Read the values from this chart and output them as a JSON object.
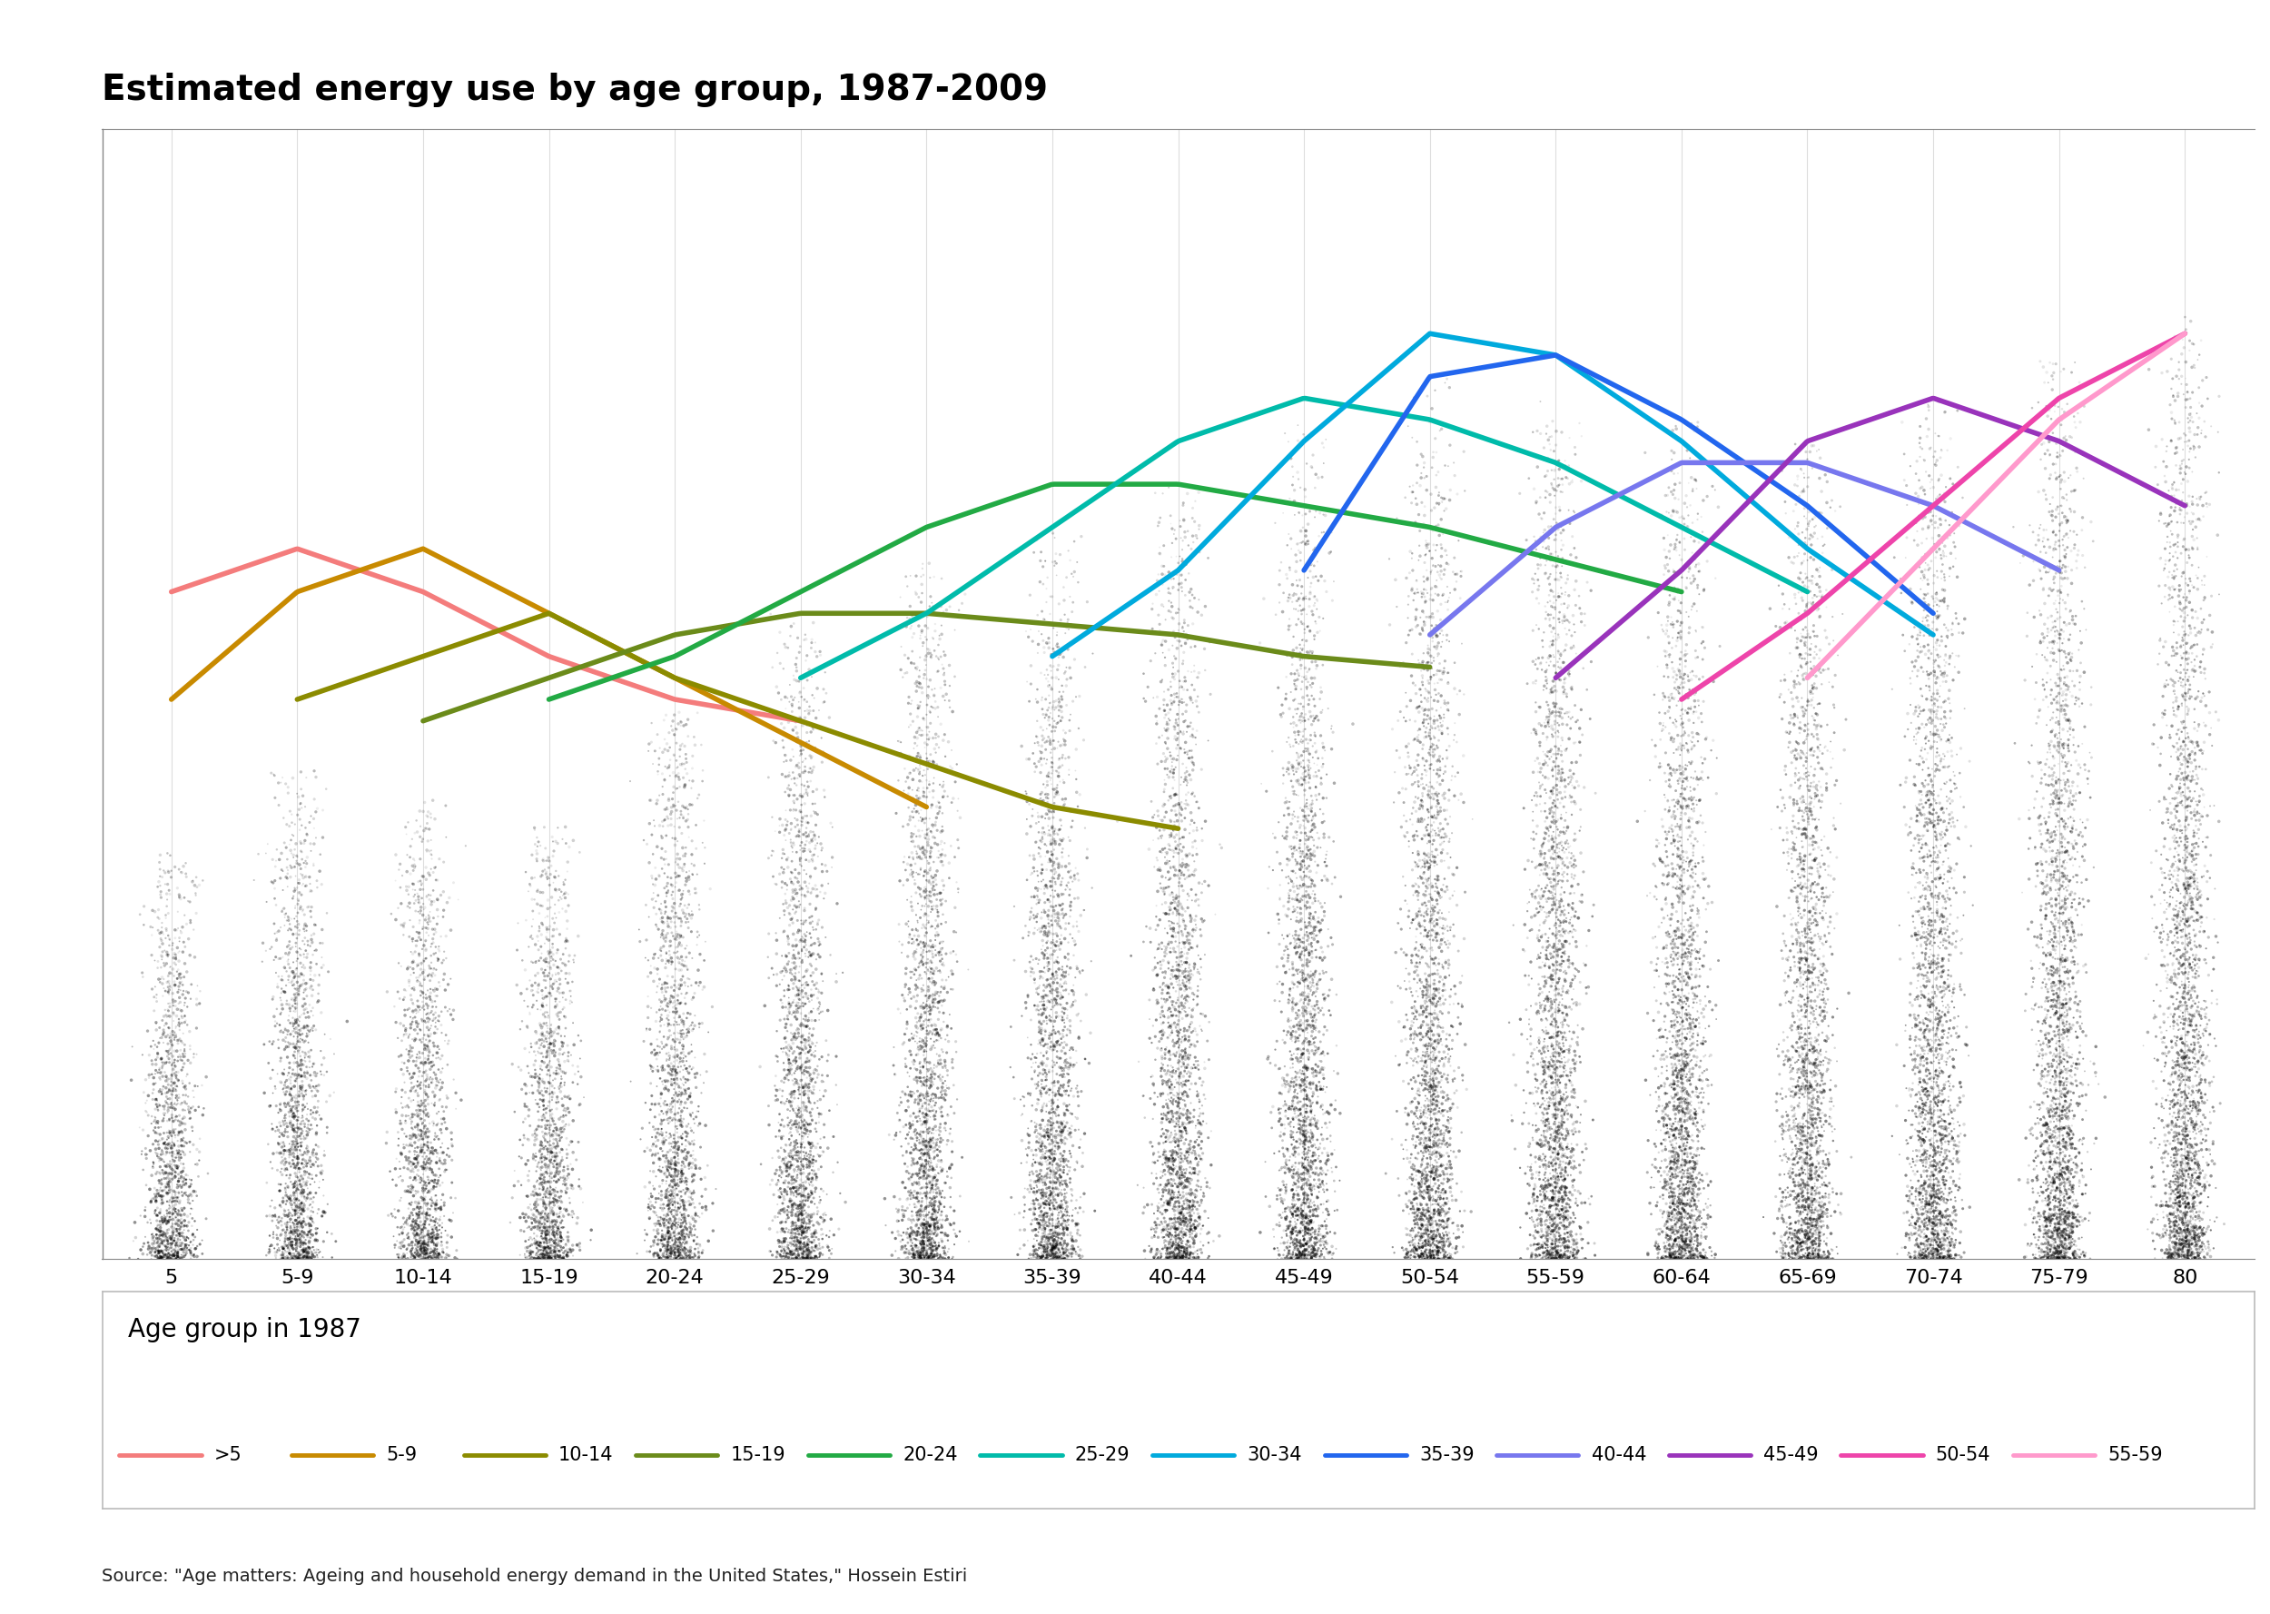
{
  "title": "Estimated energy use by age group, 1987-2009",
  "source_text": "Source: \"Age matters: Ageing and household energy demand in the United States,\" Hossein Estiri",
  "x_labels": [
    "5",
    "5-9",
    "10-14",
    "15-19",
    "20-24",
    "25-29",
    "30-34",
    "35-39",
    "40-44",
    "45-49",
    "50-54",
    "55-59",
    "60-64",
    "65-69",
    "70-74",
    "75-79",
    "80"
  ],
  "legend_title": "Age group in 1987",
  "legend_entries": [
    ">5",
    "5-9",
    "10-14",
    "15-19",
    "20-24",
    "25-29",
    "30-34",
    "35-39",
    "40-44",
    "45-49",
    "50-54",
    "55-59"
  ],
  "legend_colors": [
    "#F47C7C",
    "#C88A00",
    "#8B8B00",
    "#6B8B1A",
    "#22AA44",
    "#00BBAA",
    "#00AADD",
    "#2266EE",
    "#7777EE",
    "#9933BB",
    "#EE44AA",
    "#FF99CC"
  ],
  "scatter_heights": [
    0.38,
    0.46,
    0.43,
    0.41,
    0.52,
    0.6,
    0.65,
    0.68,
    0.72,
    0.78,
    0.82,
    0.8,
    0.78,
    0.76,
    0.8,
    0.84,
    0.88
  ],
  "line_data": {
    "gt5": {
      "color": "#F47C7C",
      "x": [
        0,
        1,
        2,
        3,
        4,
        5
      ],
      "y": [
        0.62,
        0.66,
        0.62,
        0.56,
        0.52,
        0.5
      ]
    },
    "5_9": {
      "color": "#C88A00",
      "x": [
        0,
        1,
        2,
        3,
        4,
        5,
        6
      ],
      "y": [
        0.52,
        0.62,
        0.66,
        0.6,
        0.54,
        0.48,
        0.42
      ]
    },
    "10_14": {
      "color": "#8B8B00",
      "x": [
        1,
        2,
        3,
        4,
        5,
        6,
        7,
        8
      ],
      "y": [
        0.52,
        0.56,
        0.6,
        0.54,
        0.5,
        0.46,
        0.42,
        0.4
      ]
    },
    "15_19": {
      "color": "#6B8B1A",
      "x": [
        2,
        3,
        4,
        5,
        6,
        7,
        8,
        9,
        10
      ],
      "y": [
        0.5,
        0.54,
        0.58,
        0.6,
        0.6,
        0.59,
        0.58,
        0.56,
        0.55
      ]
    },
    "20_24": {
      "color": "#22AA44",
      "x": [
        3,
        4,
        5,
        6,
        7,
        8,
        9,
        10,
        11,
        12
      ],
      "y": [
        0.52,
        0.56,
        0.62,
        0.68,
        0.72,
        0.72,
        0.7,
        0.68,
        0.65,
        0.62
      ]
    },
    "25_29": {
      "color": "#00BBAA",
      "x": [
        5,
        6,
        7,
        8,
        9,
        10,
        11,
        12,
        13
      ],
      "y": [
        0.54,
        0.6,
        0.68,
        0.76,
        0.8,
        0.78,
        0.74,
        0.68,
        0.62
      ]
    },
    "30_34": {
      "color": "#00AADD",
      "x": [
        7,
        8,
        9,
        10,
        11,
        12,
        13,
        14
      ],
      "y": [
        0.56,
        0.64,
        0.76,
        0.86,
        0.84,
        0.76,
        0.66,
        0.58
      ]
    },
    "35_39": {
      "color": "#2266EE",
      "x": [
        9,
        10,
        11,
        12,
        13,
        14
      ],
      "y": [
        0.64,
        0.82,
        0.84,
        0.78,
        0.7,
        0.6
      ]
    },
    "40_44": {
      "color": "#7777EE",
      "x": [
        10,
        11,
        12,
        13,
        14,
        15
      ],
      "y": [
        0.58,
        0.68,
        0.74,
        0.74,
        0.7,
        0.64
      ]
    },
    "45_49": {
      "color": "#9933BB",
      "x": [
        11,
        12,
        13,
        14,
        15,
        16
      ],
      "y": [
        0.54,
        0.64,
        0.76,
        0.8,
        0.76,
        0.7
      ]
    },
    "50_54": {
      "color": "#EE44AA",
      "x": [
        12,
        13,
        14,
        15,
        16
      ],
      "y": [
        0.52,
        0.6,
        0.7,
        0.8,
        0.86
      ]
    },
    "55_59": {
      "color": "#FF99CC",
      "x": [
        13,
        14,
        15,
        16
      ],
      "y": [
        0.54,
        0.66,
        0.78,
        0.86
      ]
    }
  },
  "ylim": [
    0.0,
    1.05
  ],
  "title_fontsize": 28,
  "legend_title_fontsize": 20,
  "legend_fontsize": 15,
  "source_fontsize": 14,
  "line_width": 4.0,
  "background_color": "#FFFFFF",
  "grid_color": "#DDDDDD",
  "border_color": "#888888"
}
